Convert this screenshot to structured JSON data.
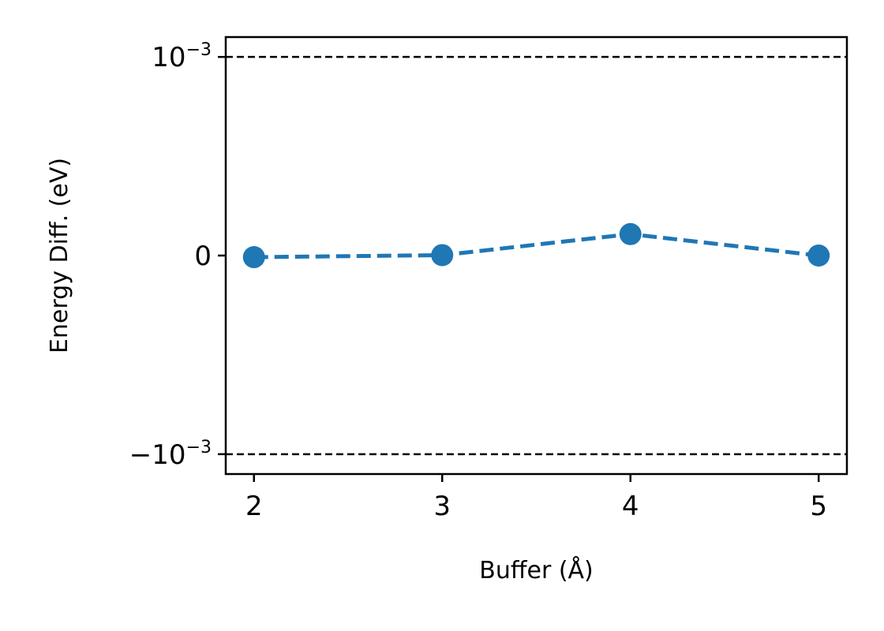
{
  "chart_data": {
    "type": "line",
    "xlabel": "Buffer (Å)",
    "ylabel": "Energy Diff. (eV)",
    "x": [
      2,
      3,
      4,
      5
    ],
    "series": [
      {
        "values": [
          -8e-06,
          2e-06,
          0.000108,
          0.0
        ],
        "color": "#1f77b4",
        "line_style": "dashed",
        "marker": "circle"
      }
    ],
    "reference_lines": [
      {
        "y": 0.001,
        "style": "dashed",
        "color": "#000000"
      },
      {
        "y": -0.001,
        "style": "dashed",
        "color": "#000000"
      }
    ],
    "xlim": [
      1.85,
      5.15
    ],
    "ylim": [
      -0.0011,
      0.0011
    ],
    "x_ticks": [
      {
        "value": 2,
        "label": "2"
      },
      {
        "value": 3,
        "label": "3"
      },
      {
        "value": 4,
        "label": "4"
      },
      {
        "value": 5,
        "label": "5"
      }
    ],
    "y_ticks": [
      {
        "value": 0.001,
        "base": "10",
        "exponent": "−3"
      },
      {
        "value": 0,
        "base": "0",
        "exponent": ""
      },
      {
        "value": -0.001,
        "base": "−10",
        "exponent": "−3"
      }
    ],
    "y_scale": "symlog",
    "grid": false
  }
}
